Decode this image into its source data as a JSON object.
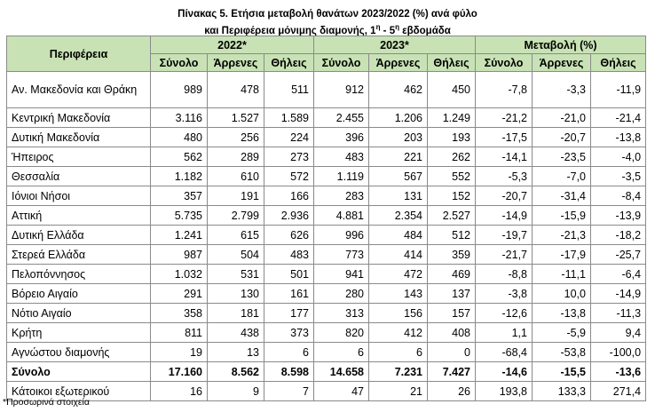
{
  "title_line1": "Πίνακας 5. Ετήσια μεταβολή θανάτων 2023/2022 (%) ανά φύλο",
  "title_line2_pre": "και Περιφέρεια μόνιμης διαμονής, 1",
  "title_sup1": "η",
  "title_mid": " - 5",
  "title_sup2": "η",
  "title_post": " εβδομάδα",
  "header": {
    "region": "Περιφέρεια",
    "group1": "2022*",
    "group2": "2023*",
    "group3": "Μεταβολή (%)",
    "sub": [
      "Σύνολο",
      "Άρρενες",
      "Θήλεις",
      "Σύνολο",
      "Άρρενες",
      "Θήλεις",
      "Σύνολο",
      "Άρρενες",
      "Θήλεις"
    ]
  },
  "rows": [
    {
      "name": "Αν. Μακεδονία και Θράκη",
      "v": [
        "989",
        "478",
        "511",
        "912",
        "462",
        "450",
        "-7,8",
        "-3,3",
        "-11,9"
      ]
    },
    {
      "name": "Κεντρική Μακεδονία",
      "v": [
        "3.116",
        "1.527",
        "1.589",
        "2.455",
        "1.206",
        "1.249",
        "-21,2",
        "-21,0",
        "-21,4"
      ]
    },
    {
      "name": "Δυτική Μακεδονία",
      "v": [
        "480",
        "256",
        "224",
        "396",
        "203",
        "193",
        "-17,5",
        "-20,7",
        "-13,8"
      ]
    },
    {
      "name": "Ήπειρος",
      "v": [
        "562",
        "289",
        "273",
        "483",
        "221",
        "262",
        "-14,1",
        "-23,5",
        "-4,0"
      ]
    },
    {
      "name": "Θεσσαλία",
      "v": [
        "1.182",
        "610",
        "572",
        "1.119",
        "567",
        "552",
        "-5,3",
        "-7,0",
        "-3,5"
      ]
    },
    {
      "name": "Ιόνιοι Νήσοι",
      "v": [
        "357",
        "191",
        "166",
        "283",
        "131",
        "152",
        "-20,7",
        "-31,4",
        "-8,4"
      ]
    },
    {
      "name": "Αττική",
      "v": [
        "5.735",
        "2.799",
        "2.936",
        "4.881",
        "2.354",
        "2.527",
        "-14,9",
        "-15,9",
        "-13,9"
      ]
    },
    {
      "name": "Δυτική Ελλάδα",
      "v": [
        "1.241",
        "615",
        "626",
        "996",
        "484",
        "512",
        "-19,7",
        "-21,3",
        "-18,2"
      ]
    },
    {
      "name": "Στερεά Ελλάδα",
      "v": [
        "987",
        "504",
        "483",
        "773",
        "414",
        "359",
        "-21,7",
        "-17,9",
        "-25,7"
      ]
    },
    {
      "name": "Πελοπόννησος",
      "v": [
        "1.032",
        "531",
        "501",
        "941",
        "472",
        "469",
        "-8,8",
        "-11,1",
        "-6,4"
      ]
    },
    {
      "name": "Βόρειο Αιγαίο",
      "v": [
        "291",
        "130",
        "161",
        "280",
        "143",
        "137",
        "-3,8",
        "10,0",
        "-14,9"
      ]
    },
    {
      "name": "Νότιο Αιγαίο",
      "v": [
        "358",
        "181",
        "177",
        "313",
        "156",
        "157",
        "-12,6",
        "-13,8",
        "-11,3"
      ]
    },
    {
      "name": "Κρήτη",
      "v": [
        "811",
        "438",
        "373",
        "820",
        "412",
        "408",
        "1,1",
        "-5,9",
        "9,4"
      ]
    },
    {
      "name": "Αγνώστου διαμονής",
      "v": [
        "19",
        "13",
        "6",
        "6",
        "6",
        "0",
        "-68,4",
        "-53,8",
        "-100,0"
      ]
    }
  ],
  "total": {
    "name": "Σύνολο",
    "v": [
      "17.160",
      "8.562",
      "8.598",
      "14.658",
      "7.231",
      "7.427",
      "-14,6",
      "-15,5",
      "-13,6"
    ]
  },
  "abroad": {
    "name": "Κάτοικοι εξωτερικού",
    "v": [
      "16",
      "9",
      "7",
      "47",
      "21",
      "26",
      "193,8",
      "133,3",
      "271,4"
    ]
  },
  "footnote": "*Προσωρινά στοιχεία"
}
